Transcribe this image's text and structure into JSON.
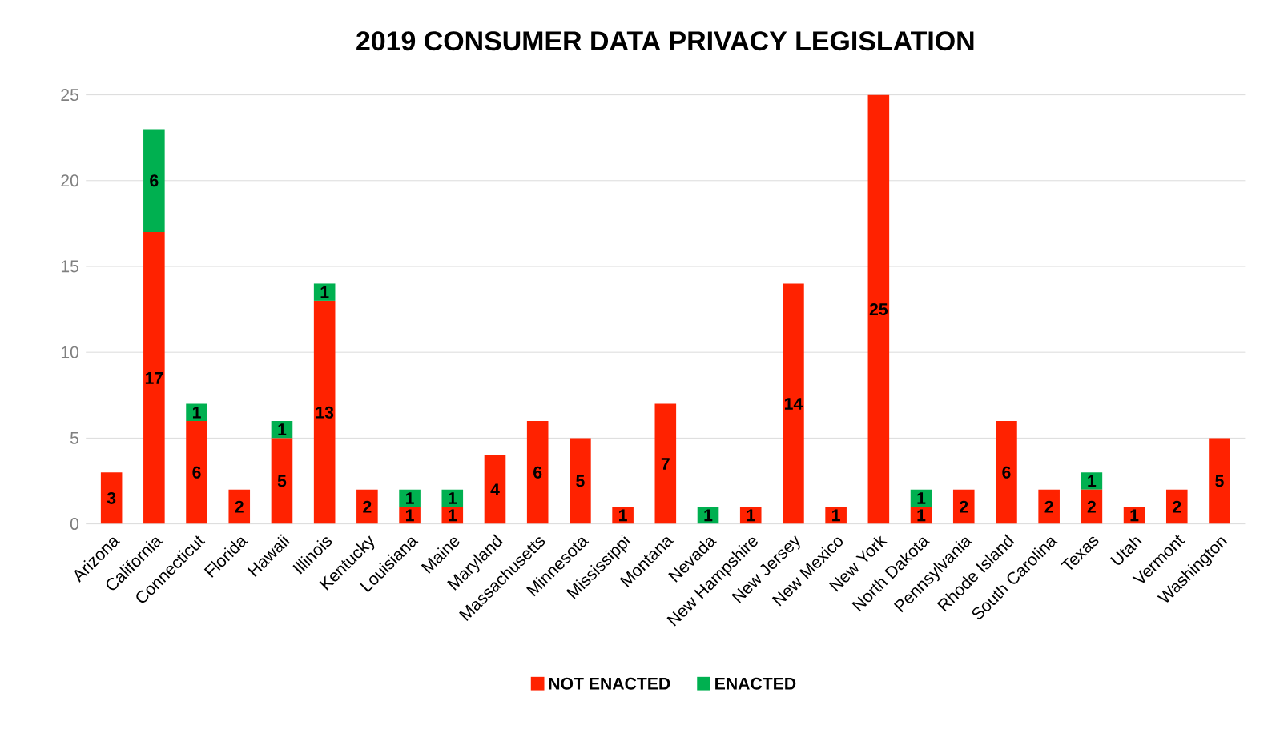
{
  "chart_data": {
    "type": "bar",
    "title": "2019 CONSUMER DATA PRIVACY LEGISLATION",
    "stacked": true,
    "categories": [
      "Arizona",
      "California",
      "Connecticut",
      "Florida",
      "Hawaii",
      "Illinois",
      "Kentucky",
      "Louisiana",
      "Maine",
      "Maryland",
      "Massachusetts",
      "Minnesota",
      "Mississippi",
      "Montana",
      "Nevada",
      "New Hampshire",
      "New Jersey",
      "New Mexico",
      "New York",
      "North Dakota",
      "Pennsylvania",
      "Rhode Island",
      "South Carolina",
      "Texas",
      "Utah",
      "Vermont",
      "Washington"
    ],
    "series": [
      {
        "name": "NOT ENACTED",
        "color": "#ff2200",
        "values": [
          3,
          17,
          6,
          2,
          5,
          13,
          2,
          1,
          1,
          4,
          6,
          5,
          1,
          7,
          0,
          1,
          14,
          1,
          25,
          1,
          2,
          6,
          2,
          2,
          1,
          2,
          5
        ],
        "value_labels": [
          "3",
          "17",
          "6",
          "2",
          "5",
          "13",
          "2",
          "1",
          "1",
          "4",
          "6",
          "5",
          "1",
          "7",
          null,
          "1",
          "14",
          "1",
          "25",
          "1",
          "2",
          "6",
          "2",
          "2",
          "1",
          "2",
          "5"
        ]
      },
      {
        "name": "ENACTED",
        "color": "#00b050",
        "values": [
          0,
          6,
          1,
          0,
          1,
          1,
          0,
          1,
          1,
          0,
          0,
          0,
          0,
          0,
          1,
          0,
          0,
          0,
          0,
          1,
          0,
          0,
          0,
          1,
          0,
          0,
          0
        ],
        "value_labels": [
          null,
          "6",
          "1",
          null,
          "1",
          "1",
          null,
          "1",
          "1",
          null,
          null,
          null,
          null,
          null,
          "1",
          null,
          null,
          null,
          null,
          "1",
          null,
          null,
          null,
          "1",
          null,
          null,
          null
        ]
      }
    ],
    "ylim": [
      0,
      25
    ],
    "yticks": [
      0,
      5,
      10,
      15,
      20,
      25
    ],
    "grid": "y",
    "legend": "bottom"
  }
}
